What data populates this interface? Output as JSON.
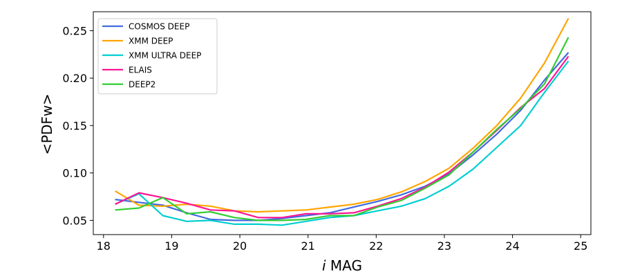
{
  "chart_data": {
    "type": "line",
    "title": "",
    "xlabel_italic": "i",
    "xlabel_rest": " MAG",
    "ylabel": "<PDFw>",
    "xlim": [
      17.85,
      25.15
    ],
    "ylim": [
      0.035,
      0.27
    ],
    "xticks": [
      18,
      19,
      20,
      21,
      22,
      23,
      24,
      25
    ],
    "yticks": [
      0.05,
      0.1,
      0.15,
      0.2,
      0.25
    ],
    "ytick_labels": [
      "0.05",
      "0.10",
      "0.15",
      "0.20",
      "0.25"
    ],
    "grid": false,
    "legend_position": "top-left",
    "x": [
      18.17,
      18.52,
      18.87,
      19.22,
      19.57,
      19.92,
      20.27,
      20.62,
      20.97,
      21.32,
      21.67,
      22.02,
      22.37,
      22.72,
      23.07,
      23.42,
      23.77,
      24.12,
      24.47,
      24.82
    ],
    "series": [
      {
        "name": "COSMOS DEEP",
        "color": "#4169E1",
        "values": [
          0.072,
          0.069,
          0.066,
          0.058,
          0.051,
          0.05,
          0.05,
          0.052,
          0.055,
          0.058,
          0.064,
          0.07,
          0.077,
          0.086,
          0.099,
          0.119,
          0.141,
          0.166,
          0.198,
          0.227
        ]
      },
      {
        "name": "XMM DEEP",
        "color": "#FFA500",
        "values": [
          0.081,
          0.066,
          0.065,
          0.067,
          0.065,
          0.06,
          0.059,
          0.06,
          0.061,
          0.064,
          0.067,
          0.072,
          0.08,
          0.091,
          0.105,
          0.126,
          0.15,
          0.179,
          0.216,
          0.263
        ]
      },
      {
        "name": "XMM ULTRA DEEP",
        "color": "#00CED1",
        "values": [
          0.067,
          0.078,
          0.055,
          0.049,
          0.05,
          0.046,
          0.046,
          0.045,
          0.049,
          0.053,
          0.055,
          0.06,
          0.065,
          0.073,
          0.086,
          0.104,
          0.127,
          0.15,
          0.185,
          0.218
        ]
      },
      {
        "name": "ELAIS",
        "color": "#FF1493",
        "values": [
          0.067,
          0.079,
          0.074,
          0.068,
          0.061,
          0.06,
          0.053,
          0.053,
          0.057,
          0.057,
          0.058,
          0.065,
          0.073,
          0.085,
          0.101,
          0.122,
          0.145,
          0.169,
          0.189,
          0.223
        ]
      },
      {
        "name": "DEEP2",
        "color": "#32CD32",
        "values": [
          0.061,
          0.063,
          0.074,
          0.057,
          0.059,
          0.053,
          0.05,
          0.05,
          0.051,
          0.055,
          0.055,
          0.064,
          0.071,
          0.084,
          0.098,
          0.122,
          0.146,
          0.168,
          0.194,
          0.243
        ]
      }
    ]
  }
}
